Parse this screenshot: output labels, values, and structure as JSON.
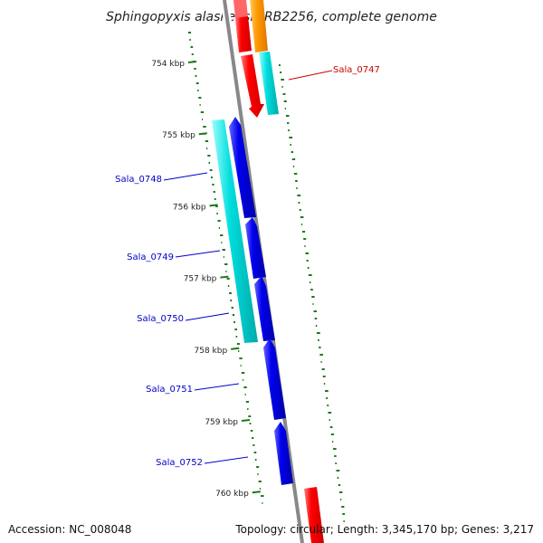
{
  "title": "Sphingopyxis alaskensis RB2256, complete genome",
  "footer": {
    "accession": "Accession: NC_008048",
    "summary": "Topology: circular; Length: 3,345,170 bp; Genes: 3,217"
  },
  "tick_labels": [
    "754 kbp",
    "755 kbp",
    "756 kbp",
    "757 kbp",
    "758 kbp",
    "759 kbp",
    "760 kbp"
  ],
  "genes": [
    {
      "id": "forward-1",
      "label": "",
      "strand": "forward",
      "color": "#ff0000"
    },
    {
      "id": "Sala_0747",
      "label": "Sala_0747",
      "strand": "forward",
      "color": "#ff0000"
    },
    {
      "id": "Sala_0748",
      "label": "Sala_0748",
      "strand": "reverse",
      "color": "#0000ee"
    },
    {
      "id": "Sala_0749",
      "label": "Sala_0749",
      "strand": "reverse",
      "color": "#0000ee"
    },
    {
      "id": "Sala_0750",
      "label": "Sala_0750",
      "strand": "reverse",
      "color": "#0000ee"
    },
    {
      "id": "Sala_0751",
      "label": "Sala_0751",
      "strand": "reverse",
      "color": "#0000ee"
    },
    {
      "id": "Sala_0752",
      "label": "Sala_0752",
      "strand": "reverse",
      "color": "#0000ee"
    },
    {
      "id": "forward-2",
      "label": "",
      "strand": "forward",
      "color": "#ff0000"
    }
  ],
  "colors": {
    "cds_forward": "#ff0000",
    "cds_reverse": "#0000ee",
    "feature_orange": "#ff9900",
    "feature_cyan": "#00cccc",
    "backbone": "#888888",
    "gc_dots": "#1a7a1a",
    "label_forward": "#cc0000",
    "label_reverse": "#0000cc"
  }
}
